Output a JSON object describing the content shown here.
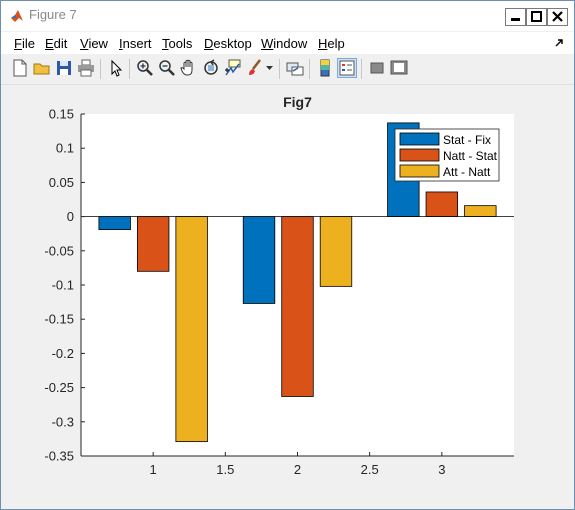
{
  "window": {
    "title": "Figure 7"
  },
  "menu": {
    "file": {
      "u": "F",
      "rest": "ile"
    },
    "edit": {
      "u": "E",
      "rest": "dit"
    },
    "view": {
      "u": "V",
      "rest": "iew"
    },
    "insert": {
      "u": "I",
      "rest": "nsert"
    },
    "tools": {
      "u": "T",
      "rest": "ools"
    },
    "desktop": {
      "u": "D",
      "rest": "esktop"
    },
    "window": {
      "u": "W",
      "rest": "indow"
    },
    "help": {
      "u": "H",
      "rest": "elp"
    }
  },
  "toolbar": {
    "icons": [
      "new-figure-icon",
      "open-file-icon",
      "save-icon",
      "print-icon",
      "edit-plot-arrow-icon",
      "zoom-in-icon",
      "zoom-out-icon",
      "pan-hand-icon",
      "rotate-3d-icon",
      "data-cursor-icon",
      "brush-icon",
      "link-plot-icon",
      "insert-colorbar-icon",
      "insert-legend-icon",
      "hide-plot-tools-icon",
      "show-plot-tools-icon"
    ]
  },
  "colors": {
    "series1": "#0072BD",
    "series2": "#D95319",
    "series3": "#EDB120"
  },
  "chart_data": {
    "type": "bar",
    "title": "Fig7",
    "xlabel": "",
    "ylabel": "",
    "x": [
      1,
      2,
      3
    ],
    "xlim": [
      0.5,
      3.5
    ],
    "ylim": [
      -0.35,
      0.15
    ],
    "xticks": [
      "1",
      "1.5",
      "2",
      "2.5",
      "3"
    ],
    "yticks": [
      "0.15",
      "0.1",
      "0.05",
      "0",
      "-0.05",
      "-0.1",
      "-0.15",
      "-0.2",
      "-0.25",
      "-0.3",
      "-0.35"
    ],
    "legend_position": "top-right",
    "series": [
      {
        "name": "Stat - Fix",
        "values": [
          -0.019,
          -0.127,
          0.137
        ]
      },
      {
        "name": "Natt - Stat",
        "values": [
          -0.08,
          -0.263,
          0.036
        ]
      },
      {
        "name": "Att - Natt",
        "values": [
          -0.329,
          -0.102,
          0.016
        ]
      }
    ]
  }
}
